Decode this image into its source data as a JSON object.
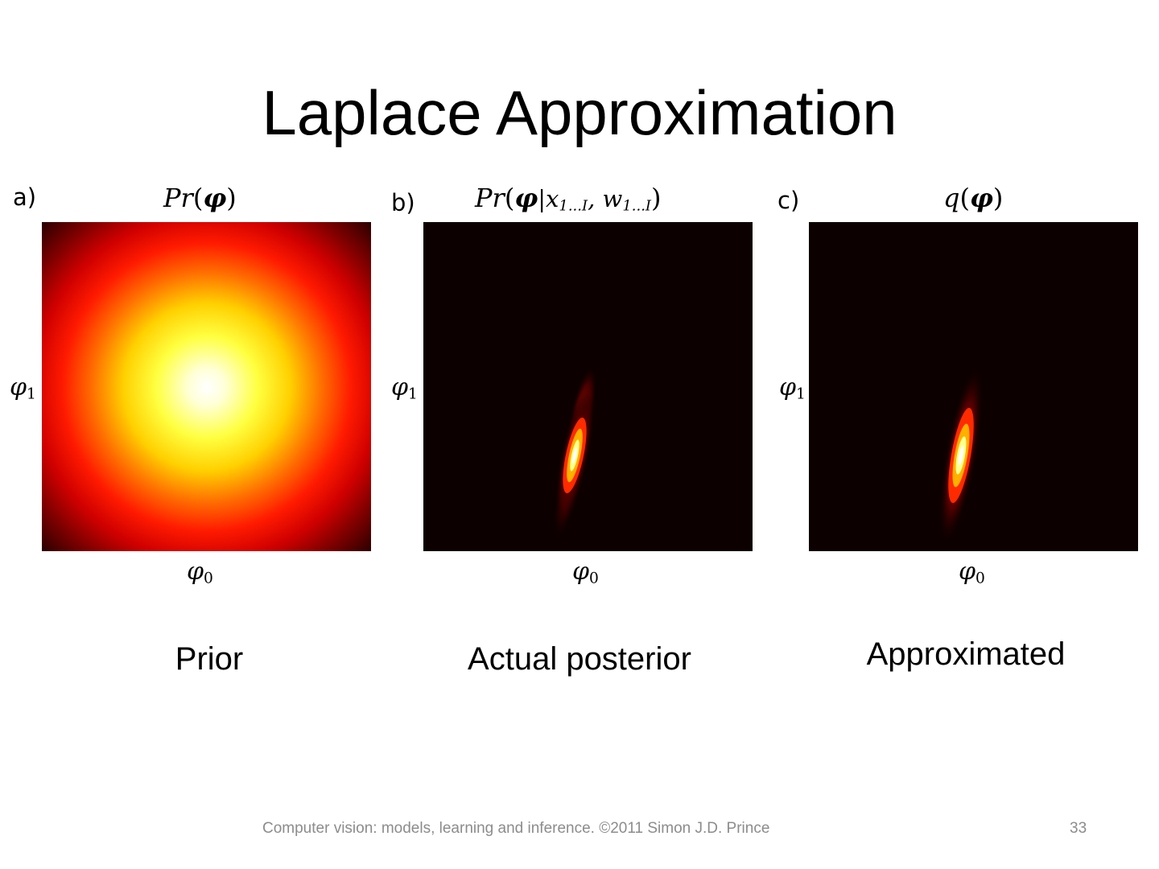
{
  "slide": {
    "title": "Laplace Approximation",
    "footer_text": "Computer vision: models, learning and inference.  ©2011 Simon J.D. Prince",
    "page_number": "33"
  },
  "panels": [
    {
      "letter": "a)",
      "title_parts": {
        "fn": "Pr",
        "arg": "φ",
        "given": "",
        "close": ")"
      },
      "ylabel": "φ1",
      "xlabel": "φ0",
      "caption": "Prior",
      "colormap": "hot",
      "image": "broad-circular-gaussian"
    },
    {
      "letter": "b)",
      "title_parts": {
        "fn": "Pr",
        "arg": "φ",
        "given": "|x1...I, w1...I",
        "close": ")"
      },
      "ylabel": "φ1",
      "xlabel": "φ0",
      "caption": "Actual posterior",
      "colormap": "hot",
      "image": "narrow-tilted-peak"
    },
    {
      "letter": "c)",
      "title_parts": {
        "fn": "q",
        "arg": "φ",
        "given": "",
        "close": ")"
      },
      "ylabel": "φ1",
      "xlabel": "φ0",
      "caption": "Approximated",
      "colormap": "hot",
      "image": "narrow-tilted-gaussian"
    }
  ],
  "colors": {
    "background": "#ffffff",
    "plot_background": "#0d0000",
    "footer": "#8c8c8c"
  }
}
